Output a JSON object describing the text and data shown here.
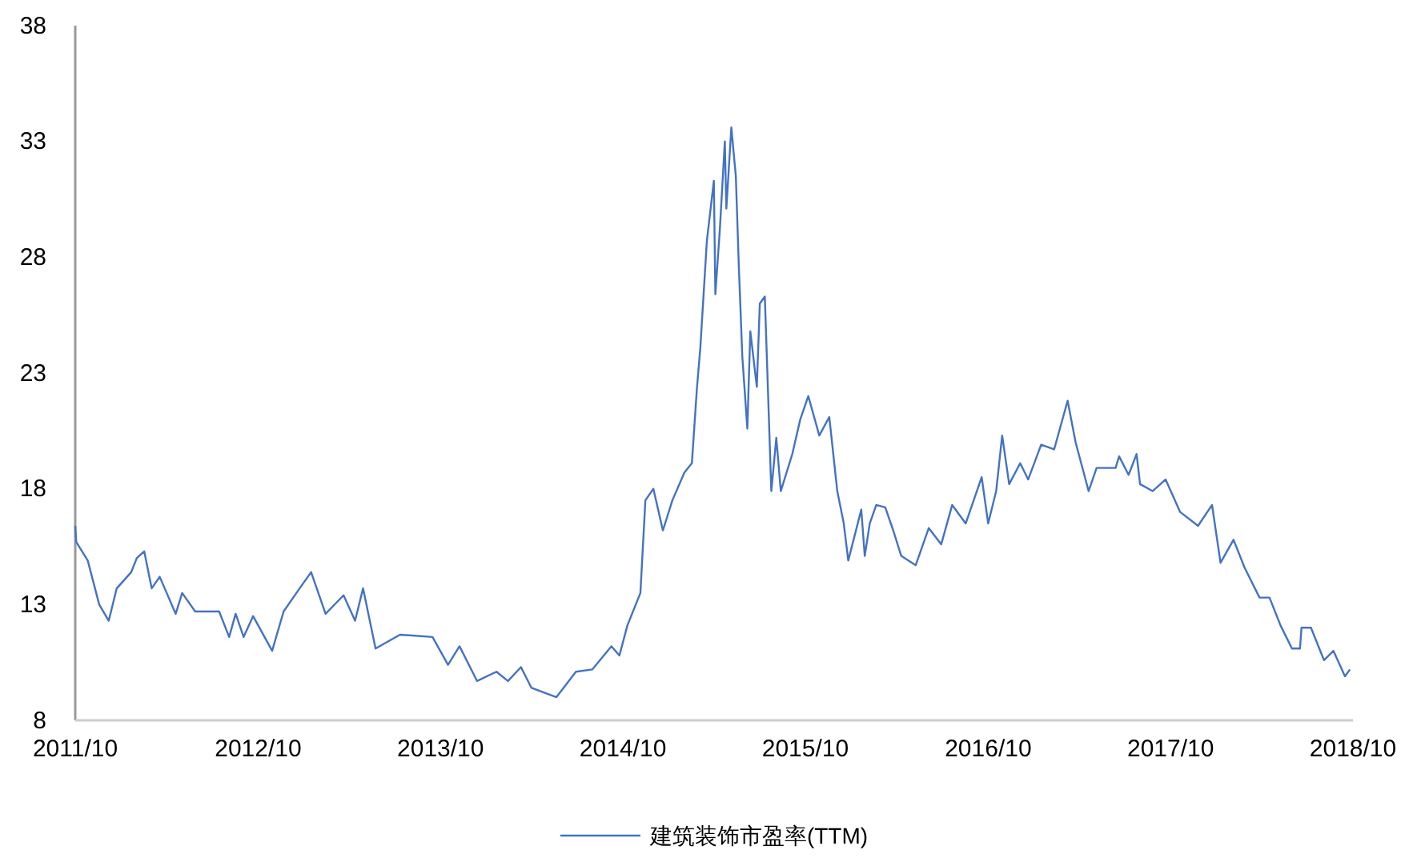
{
  "chart_data": {
    "type": "line",
    "xlim": [
      "2011-10-01",
      "2018-10-01"
    ],
    "xticks": [
      {
        "value": "2011-10-01",
        "label": "2011/10"
      },
      {
        "value": "2012-10-01",
        "label": "2012/10"
      },
      {
        "value": "2013-10-01",
        "label": "2013/10"
      },
      {
        "value": "2014-10-01",
        "label": "2014/10"
      },
      {
        "value": "2015-10-01",
        "label": "2015/10"
      },
      {
        "value": "2016-10-01",
        "label": "2016/10"
      },
      {
        "value": "2017-10-01",
        "label": "2017/10"
      },
      {
        "value": "2018-10-01",
        "label": "2018/10"
      }
    ],
    "ylim": [
      8,
      38
    ],
    "yticks": [
      8,
      13,
      18,
      23,
      28,
      33,
      38
    ],
    "grid": false,
    "legend": "bottom",
    "x": [
      "2011-10-01",
      "2011-10-03",
      "2011-10-26",
      "2011-11-18",
      "2011-12-07",
      "2011-12-23",
      "2012-01-21",
      "2012-02-01",
      "2012-02-16",
      "2012-03-02",
      "2012-03-18",
      "2012-04-19",
      "2012-05-02",
      "2012-05-28",
      "2012-07-15",
      "2012-08-04",
      "2012-08-17",
      "2012-09-02",
      "2012-09-21",
      "2012-10-29",
      "2012-11-21",
      "2012-12-23",
      "2013-01-15",
      "2013-02-13",
      "2013-03-21",
      "2013-04-13",
      "2013-04-29",
      "2013-05-24",
      "2013-07-12",
      "2013-09-15",
      "2013-10-16",
      "2013-11-08",
      "2013-12-13",
      "2014-01-21",
      "2014-02-13",
      "2014-03-11",
      "2014-04-01",
      "2014-05-21",
      "2014-06-29",
      "2014-08-01",
      "2014-09-08",
      "2014-09-24",
      "2014-10-10",
      "2014-11-05",
      "2014-11-15",
      "2014-12-01",
      "2014-12-20",
      "2015-01-08",
      "2015-02-01",
      "2015-02-16",
      "2015-02-26",
      "2015-03-05",
      "2015-03-18",
      "2015-04-01",
      "2015-04-04",
      "2015-04-13",
      "2015-04-23",
      "2015-04-26",
      "2015-05-06",
      "2015-05-15",
      "2015-05-21",
      "2015-05-28",
      "2015-06-07",
      "2015-06-13",
      "2015-06-26",
      "2015-07-02",
      "2015-07-12",
      "2015-07-25",
      "2015-08-04",
      "2015-08-13",
      "2015-09-05",
      "2015-09-21",
      "2015-10-07",
      "2015-10-29",
      "2015-11-18",
      "2015-12-04",
      "2015-12-17",
      "2015-12-26",
      "2016-01-21",
      "2016-01-28",
      "2016-02-07",
      "2016-02-20",
      "2016-03-09",
      "2016-03-25",
      "2016-04-10",
      "2016-05-09",
      "2016-06-04",
      "2016-06-29",
      "2016-07-21",
      "2016-08-17",
      "2016-09-18",
      "2016-10-01",
      "2016-10-17",
      "2016-10-29",
      "2016-11-12",
      "2016-12-04",
      "2016-12-20",
      "2017-01-15",
      "2017-02-10",
      "2017-03-09",
      "2017-03-25",
      "2017-04-20",
      "2017-05-06",
      "2017-06-13",
      "2017-06-20",
      "2017-07-09",
      "2017-07-25",
      "2017-08-01",
      "2017-08-26",
      "2017-09-21",
      "2017-10-20",
      "2017-11-25",
      "2017-12-23",
      "2018-01-09",
      "2018-02-04",
      "2018-02-26",
      "2018-03-28",
      "2018-04-17",
      "2018-05-09",
      "2018-06-01",
      "2018-06-17",
      "2018-06-20",
      "2018-07-09",
      "2018-08-04",
      "2018-08-23",
      "2018-09-15",
      "2018-09-25"
    ],
    "series": [
      {
        "name": "建筑装饰市盈率(TTM)",
        "color": "#4472c4",
        "values": [
          16.4,
          15.7,
          14.9,
          13.0,
          12.3,
          13.7,
          14.4,
          15.0,
          15.3,
          13.7,
          14.2,
          12.6,
          13.5,
          12.7,
          12.7,
          11.6,
          12.6,
          11.6,
          12.5,
          11.0,
          12.7,
          13.7,
          14.4,
          12.6,
          13.4,
          12.3,
          13.7,
          11.1,
          11.7,
          11.6,
          10.4,
          11.2,
          9.7,
          10.1,
          9.7,
          10.3,
          9.4,
          9.0,
          10.1,
          10.2,
          11.2,
          10.8,
          12.1,
          13.5,
          17.5,
          18.0,
          16.2,
          17.5,
          18.7,
          19.1,
          22.3,
          24.1,
          28.7,
          31.3,
          26.4,
          29.2,
          33.0,
          30.1,
          33.6,
          31.5,
          27.6,
          23.7,
          20.6,
          24.8,
          22.4,
          26.0,
          26.3,
          17.9,
          20.2,
          17.9,
          19.5,
          21.0,
          22.0,
          20.3,
          21.1,
          17.9,
          16.5,
          14.9,
          17.1,
          15.1,
          16.5,
          17.3,
          17.2,
          16.2,
          15.1,
          14.7,
          16.3,
          15.6,
          17.3,
          16.5,
          18.5,
          16.5,
          17.9,
          20.3,
          18.2,
          19.1,
          18.4,
          19.9,
          19.7,
          21.8,
          20.0,
          17.9,
          18.9,
          18.9,
          19.4,
          18.6,
          19.5,
          18.2,
          17.9,
          18.4,
          17.0,
          16.4,
          17.3,
          14.8,
          15.8,
          14.6,
          13.3,
          13.3,
          12.1,
          11.1,
          11.1,
          12.0,
          12.0,
          10.6,
          11.0,
          9.9,
          10.2
        ]
      }
    ]
  }
}
